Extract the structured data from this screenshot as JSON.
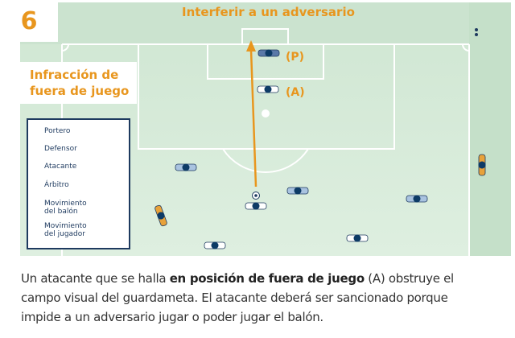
{
  "panel_number": "6",
  "title": "Interferir a un adversario",
  "subtitle_line1": "Infracción de",
  "subtitle_line2": "fuera de juego",
  "labels": {
    "goalkeeper": "(P)",
    "attacker": "(A)"
  },
  "legend": {
    "goalkeeper": "Portero",
    "defender": "Defensor",
    "attacker": "Atacante",
    "referee": "Árbitro",
    "ball_movement_1": "Movimiento",
    "ball_movement_2": "del balón",
    "player_movement_1": "Movimiento",
    "player_movement_2": "del jugador"
  },
  "description": {
    "pre": "Un atacante que se halla ",
    "bold": "en posición de fuera de juego",
    "post1": " (A) obstruye el",
    "line2": "campo visual del guardameta. El atacante deberá ser sancionado porque",
    "line3": "impide a un adversario jugar o poder jugar el balón."
  },
  "colors": {
    "accent": "#e8961e",
    "navy": "#1e3a5f",
    "pitch": "#d6ead8",
    "goalkeeper": "#5a79a8",
    "defender": "#a9c3e0",
    "attacker": "#ffffff",
    "referee": "#e8a23a"
  }
}
